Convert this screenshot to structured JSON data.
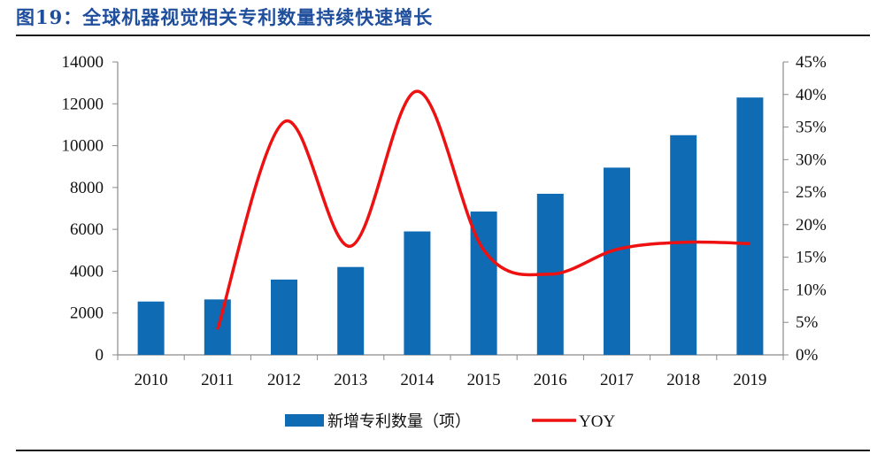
{
  "figure": {
    "title": "图19：全球机器视觉相关专利数量持续快速增长"
  },
  "chart_data": {
    "type": "bar",
    "categories": [
      "2010",
      "2011",
      "2012",
      "2013",
      "2014",
      "2015",
      "2016",
      "2017",
      "2018",
      "2019"
    ],
    "series": [
      {
        "name": "新增专利数量（项）",
        "kind": "bar",
        "axis": "left",
        "color": "#0e6bb4",
        "values": [
          2550,
          2650,
          3600,
          4200,
          5900,
          6850,
          7700,
          8950,
          10500,
          12300
        ]
      },
      {
        "name": "YOY",
        "kind": "line",
        "axis": "right",
        "color": "#ee1111",
        "values": [
          null,
          3.9,
          35.8,
          16.7,
          40.5,
          16.1,
          12.4,
          16.2,
          17.3,
          17.1
        ]
      }
    ],
    "y_left": {
      "min": 0,
      "max": 14000,
      "ticks": [
        "0",
        "2000",
        "4000",
        "6000",
        "8000",
        "10000",
        "12000",
        "14000"
      ]
    },
    "y_right": {
      "min": 0,
      "max": 45,
      "ticks": [
        "0%",
        "5%",
        "10%",
        "15%",
        "20%",
        "25%",
        "30%",
        "35%",
        "40%",
        "45%"
      ]
    },
    "xlabel": "",
    "ylabel": "",
    "legend": "bottom-center",
    "grid": false
  }
}
